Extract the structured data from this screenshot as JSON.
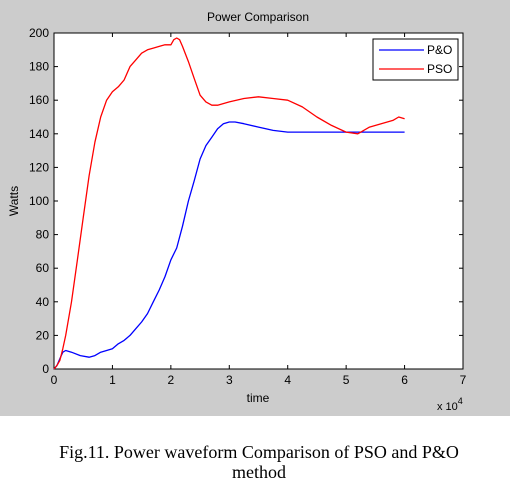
{
  "figure": {
    "background": "#cccccc",
    "caption_line1": "Fig.11. Power waveform Comparison of PSO and P&O",
    "caption_line2": "method"
  },
  "chart_data": {
    "type": "line",
    "title": "Power Comparison",
    "xlabel": "time",
    "ylabel": "Watts",
    "x_multiplier_label": "x 10",
    "x_multiplier_exponent": "4",
    "xlim": [
      0,
      7
    ],
    "ylim": [
      0,
      200
    ],
    "x_unit_scale": 10000,
    "xticks": [
      0,
      1,
      2,
      3,
      4,
      5,
      6,
      7
    ],
    "yticks": [
      0,
      20,
      40,
      60,
      80,
      100,
      120,
      140,
      160,
      180,
      200
    ],
    "grid": false,
    "legend_position": "top-right",
    "series": [
      {
        "name": "P&O",
        "color": "#0000ff",
        "x": [
          0,
          0.05,
          0.1,
          0.15,
          0.2,
          0.3,
          0.45,
          0.6,
          0.7,
          0.8,
          0.9,
          1.0,
          1.1,
          1.2,
          1.3,
          1.4,
          1.5,
          1.6,
          1.7,
          1.8,
          1.9,
          2.0,
          2.1,
          2.2,
          2.3,
          2.4,
          2.5,
          2.6,
          2.7,
          2.8,
          2.9,
          3.0,
          3.1,
          3.25,
          3.5,
          3.75,
          4.0,
          4.5,
          5.0,
          5.5,
          6.0
        ],
        "y": [
          0,
          2,
          6,
          10,
          11,
          10,
          8,
          7,
          8,
          10,
          11,
          12,
          15,
          17,
          20,
          24,
          28,
          33,
          40,
          47,
          55,
          65,
          72,
          85,
          100,
          112,
          125,
          133,
          138,
          143,
          146,
          147,
          147,
          146,
          144,
          142,
          141,
          141,
          141,
          141,
          141
        ]
      },
      {
        "name": "PSO",
        "color": "#ff0000",
        "x": [
          0,
          0.05,
          0.1,
          0.15,
          0.2,
          0.3,
          0.4,
          0.5,
          0.6,
          0.7,
          0.8,
          0.9,
          1.0,
          1.1,
          1.2,
          1.3,
          1.4,
          1.5,
          1.6,
          1.7,
          1.8,
          1.9,
          2.0,
          2.05,
          2.1,
          2.15,
          2.2,
          2.3,
          2.4,
          2.5,
          2.6,
          2.7,
          2.8,
          3.0,
          3.25,
          3.5,
          3.75,
          4.0,
          4.25,
          4.5,
          4.75,
          5.0,
          5.2,
          5.4,
          5.6,
          5.8,
          5.9,
          6.0
        ],
        "y": [
          0,
          2,
          5,
          12,
          20,
          40,
          65,
          90,
          115,
          135,
          150,
          160,
          165,
          168,
          172,
          180,
          184,
          188,
          190,
          191,
          192,
          193,
          193,
          196,
          197,
          196,
          192,
          183,
          173,
          163,
          159,
          157,
          157,
          159,
          161,
          162,
          161,
          160,
          156,
          150,
          145,
          141,
          140,
          144,
          146,
          148,
          150,
          149
        ]
      }
    ]
  }
}
